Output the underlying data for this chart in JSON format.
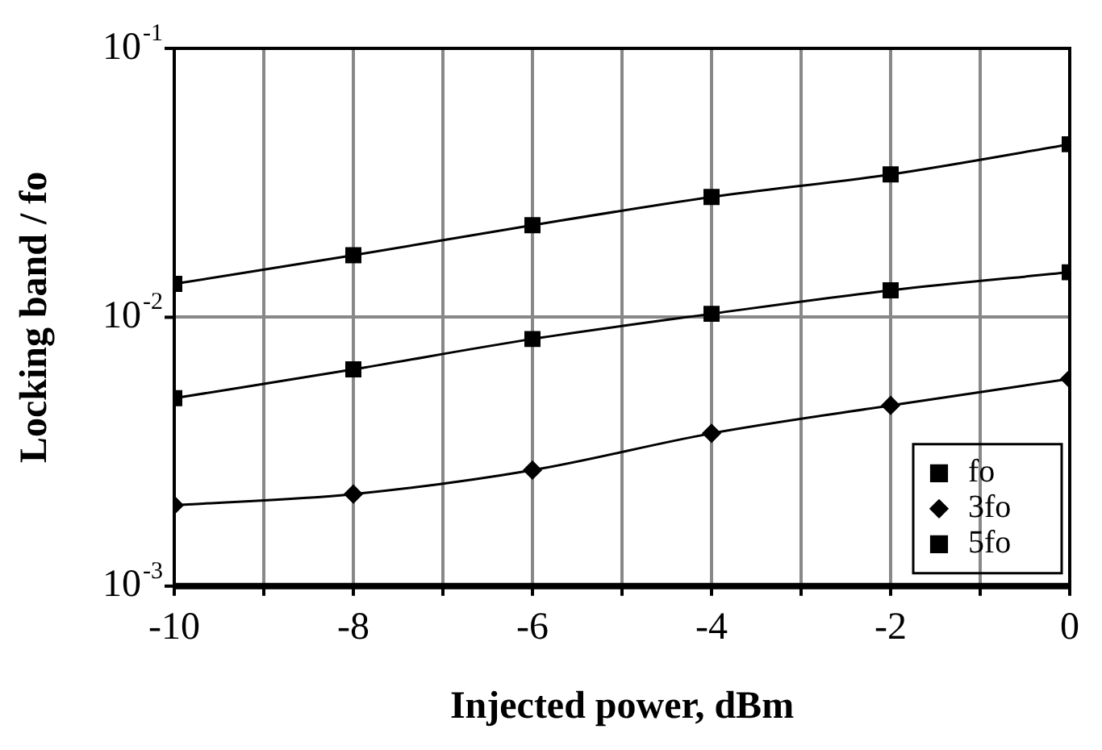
{
  "chart_data": {
    "type": "line",
    "xlabel": "Injected power, dBm",
    "ylabel": "Locking band / fo",
    "x": [
      -10,
      -8,
      -6,
      -4,
      -2,
      0
    ],
    "series": [
      {
        "name": "fo",
        "color": "#000000",
        "marker": "square",
        "values": [
          0.0133,
          0.017,
          0.022,
          0.028,
          0.034,
          0.044
        ]
      },
      {
        "name": "3fo",
        "color": "#000000",
        "marker": "diamond",
        "values": [
          0.002,
          0.0022,
          0.0027,
          0.0037,
          0.0047,
          0.0059
        ]
      },
      {
        "name": "5fo",
        "color": "#000000",
        "marker": "square",
        "values": [
          0.005,
          0.0064,
          0.0083,
          0.0103,
          0.0126,
          0.0147
        ]
      }
    ],
    "xlim": [
      -10,
      0
    ],
    "xticks": [
      -10,
      {
        "value": -9,
        "label": null
      },
      -8,
      {
        "value": -7,
        "label": null
      },
      -6,
      {
        "value": -5,
        "label": null
      },
      -4,
      {
        "value": -3,
        "label": null
      },
      -2,
      {
        "value": -1,
        "label": null
      },
      0
    ],
    "ylim": [
      0.001,
      0.1
    ],
    "yticks": [
      {
        "value": 0.001,
        "label": "10$^{-3}$"
      },
      {
        "value": 0.01,
        "label": "10$^{-2}$"
      },
      {
        "value": 0.1,
        "label": "10$^{-1}$"
      }
    ],
    "log": "y",
    "grid": true,
    "legend": "bottom right",
    "line_style": "solid"
  }
}
